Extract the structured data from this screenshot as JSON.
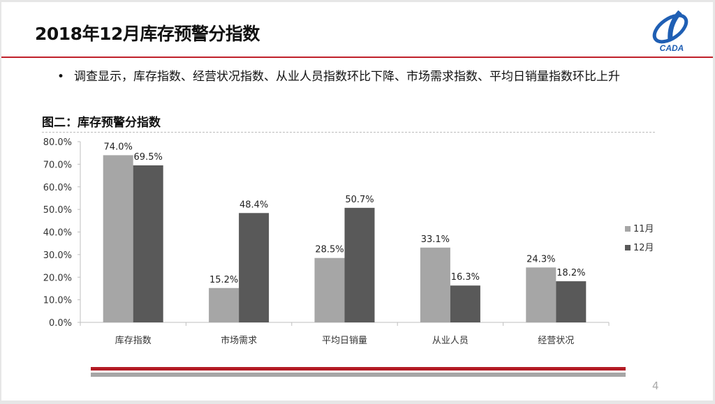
{
  "header": {
    "title": "2018年12月库存预警分指数",
    "logo_text": "CADA"
  },
  "bullet": {
    "dot": "•",
    "text": "调查显示，库存指数、经营状况指数、从业人员指数环比下降、市场需求指数、平均日销量指数环比上升"
  },
  "figure_title": "图二：库存预警分指数",
  "page_number": "4",
  "chart_data": {
    "type": "bar",
    "title": "",
    "categories": [
      "库存指数",
      "市场需求",
      "平均日销量",
      "从业人员",
      "经营状况"
    ],
    "series": [
      {
        "name": "11月",
        "color": "#a6a6a6",
        "values": [
          74.0,
          15.2,
          28.5,
          33.1,
          24.3
        ],
        "labels": [
          "74.0%",
          "15.2%",
          "28.5%",
          "33.1%",
          "24.3%"
        ]
      },
      {
        "name": "12月",
        "color": "#595959",
        "values": [
          69.5,
          48.4,
          50.7,
          16.3,
          18.2
        ],
        "labels": [
          "69.5%",
          "48.4%",
          "50.7%",
          "16.3%",
          "18.2%"
        ]
      }
    ],
    "ylim": [
      0,
      80
    ],
    "yticks": [
      "0.0%",
      "10.0%",
      "20.0%",
      "30.0%",
      "40.0%",
      "50.0%",
      "60.0%",
      "70.0%",
      "80.0%"
    ],
    "grid": false,
    "legend": "right"
  }
}
